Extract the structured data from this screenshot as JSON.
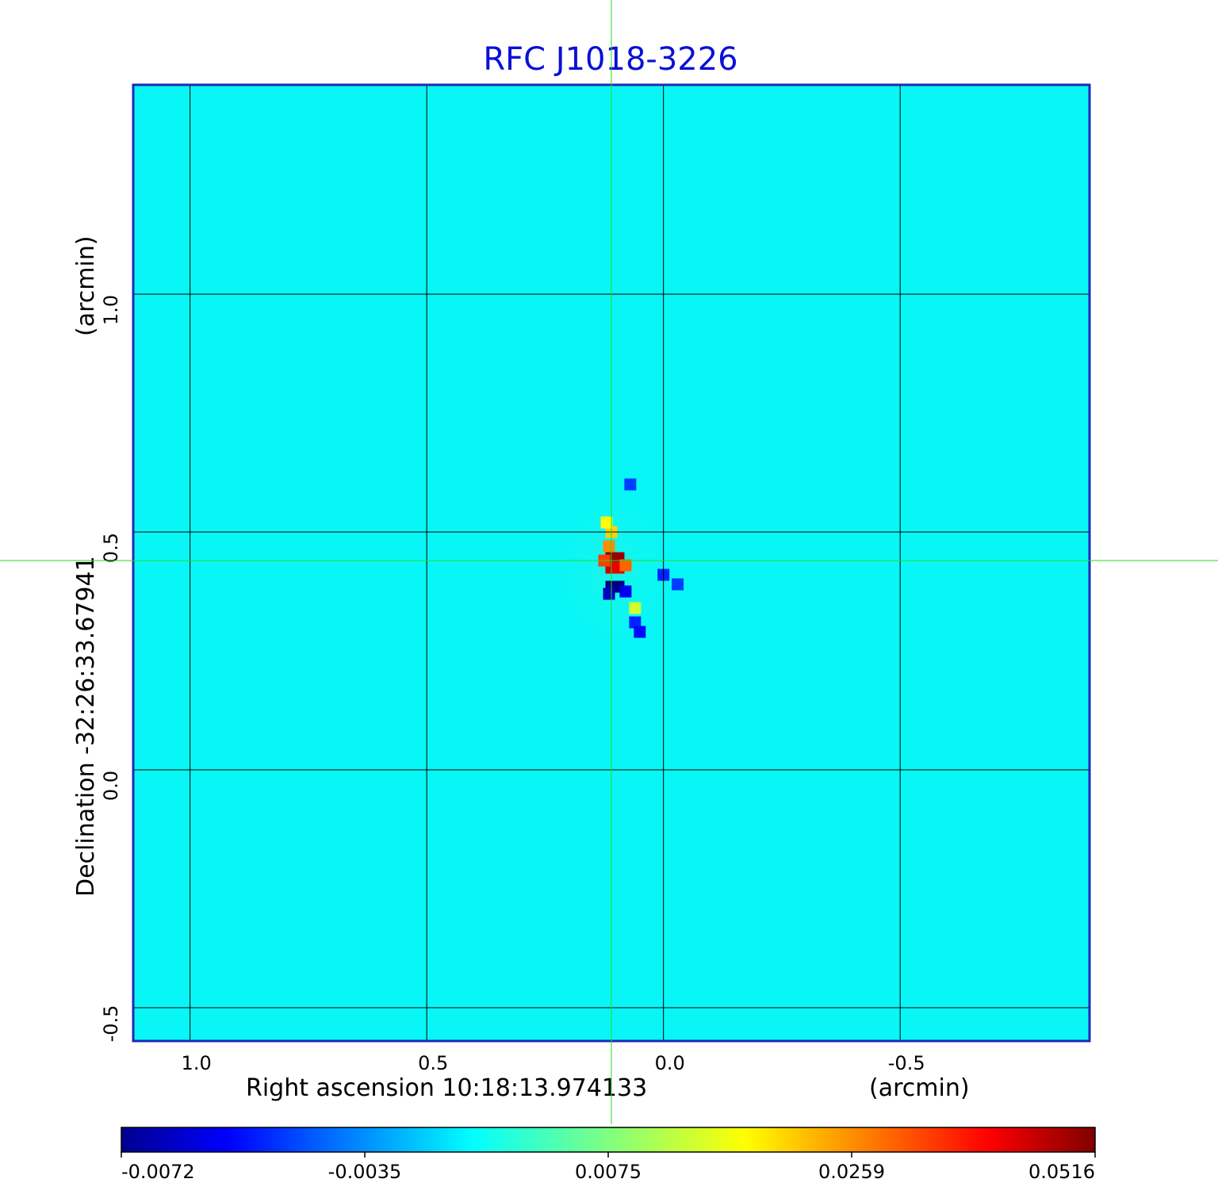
{
  "chart_data": {
    "type": "heatmap",
    "title": "RFC J1018-3226",
    "xlabel": "Right ascension  10:18:13.974133",
    "xunit": "(arcmin)",
    "ylabel": "Declination  -32:26:33.67941",
    "yunit": "(arcmin)",
    "xlim": [
      1.12,
      -0.9
    ],
    "ylim": [
      -0.57,
      1.44
    ],
    "xticks": [
      "1.0",
      "0.5",
      "0.0",
      "-0.5"
    ],
    "xtick_values": [
      1.0,
      0.5,
      0.0,
      -0.5
    ],
    "yticks": [
      "-0.5",
      "0.0",
      "0.5",
      "1.0"
    ],
    "ytick_values": [
      -0.5,
      0.0,
      0.5,
      1.0
    ],
    "grid": true,
    "crosshair": {
      "x": 0.11,
      "y": 0.44
    },
    "background_value": 0.0,
    "colormap": "jet",
    "colorbar_ticks": [
      "-0.0072",
      "-0.0035",
      "0.0075",
      "0.0259",
      "0.0516"
    ],
    "colorbar_range": [
      -0.0072,
      0.0516
    ],
    "features": [
      {
        "x": 0.11,
        "y": 0.445,
        "value": 0.0516
      },
      {
        "x": 0.095,
        "y": 0.445,
        "value": 0.047
      },
      {
        "x": 0.11,
        "y": 0.425,
        "value": 0.04
      },
      {
        "x": 0.095,
        "y": 0.425,
        "value": 0.036
      },
      {
        "x": 0.125,
        "y": 0.44,
        "value": 0.026
      },
      {
        "x": 0.08,
        "y": 0.43,
        "value": 0.022
      },
      {
        "x": 0.115,
        "y": 0.47,
        "value": 0.018
      },
      {
        "x": 0.11,
        "y": 0.5,
        "value": 0.012
      },
      {
        "x": 0.12,
        "y": 0.52,
        "value": 0.009
      },
      {
        "x": 0.11,
        "y": 0.385,
        "value": -0.0072
      },
      {
        "x": 0.095,
        "y": 0.385,
        "value": -0.0072
      },
      {
        "x": 0.115,
        "y": 0.37,
        "value": -0.006
      },
      {
        "x": 0.08,
        "y": 0.375,
        "value": -0.005
      },
      {
        "x": 0.06,
        "y": 0.31,
        "value": -0.004
      },
      {
        "x": 0.05,
        "y": 0.29,
        "value": -0.0045
      },
      {
        "x": 0.0,
        "y": 0.41,
        "value": -0.004
      },
      {
        "x": -0.03,
        "y": 0.39,
        "value": -0.0035
      },
      {
        "x": 0.07,
        "y": 0.6,
        "value": -0.0035
      },
      {
        "x": 0.06,
        "y": 0.34,
        "value": 0.006
      }
    ]
  }
}
